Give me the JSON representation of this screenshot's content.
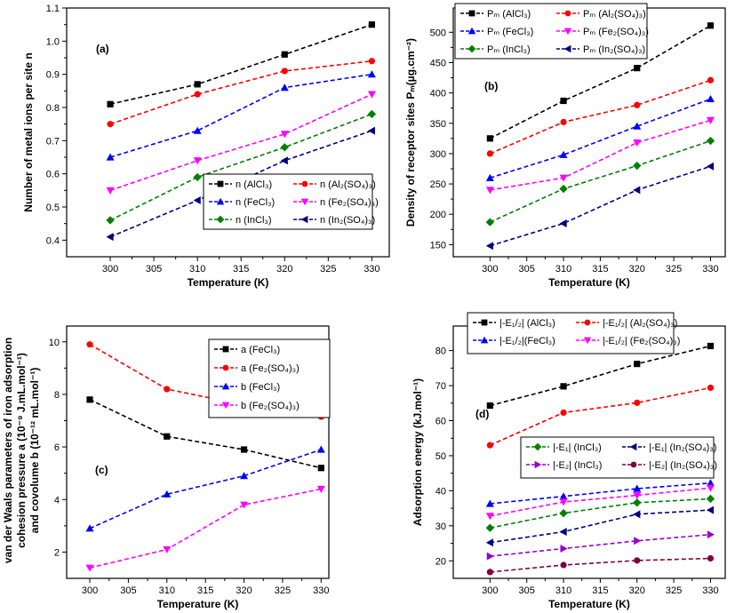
{
  "chart_data": [
    {
      "type": "line",
      "panel_label": "(a)",
      "xlabel": "Temperature (K)",
      "ylabel": "Number of metal ions per site n",
      "xlim": [
        295,
        332
      ],
      "ylim": [
        0.35,
        1.1
      ],
      "xticks": [
        300,
        305,
        310,
        315,
        320,
        325,
        330
      ],
      "yticks": [
        0.4,
        0.5,
        0.6,
        0.7,
        0.8,
        0.9,
        1.0,
        1.1
      ],
      "ytick_labels": [
        "0.4",
        "0.5",
        "0.6",
        "0.7",
        "0.8",
        "0.9",
        "1.0",
        "1.1"
      ],
      "legend": "lower-right, 2 columns",
      "series": [
        {
          "name": "n (AlCl₃)",
          "color": "#000000",
          "marker": "square",
          "x": [
            300,
            310,
            320,
            330
          ],
          "values": [
            0.81,
            0.87,
            0.96,
            1.05
          ]
        },
        {
          "name": "n (Al₂(SO₄)₃)",
          "color": "#ff0000",
          "marker": "circle",
          "x": [
            300,
            310,
            320,
            330
          ],
          "values": [
            0.75,
            0.84,
            0.91,
            0.94
          ]
        },
        {
          "name": "n (FeCl₃)",
          "color": "#0000ff",
          "marker": "triangle-up",
          "x": [
            300,
            310,
            320,
            330
          ],
          "values": [
            0.65,
            0.73,
            0.86,
            0.9
          ]
        },
        {
          "name": "n (Fe₂(SO₄)₃)",
          "color": "#ff00ff",
          "marker": "triangle-down",
          "x": [
            300,
            310,
            320,
            330
          ],
          "values": [
            0.55,
            0.64,
            0.72,
            0.84
          ]
        },
        {
          "name": "n (InCl₃)",
          "color": "#008000",
          "marker": "diamond",
          "x": [
            300,
            310,
            320,
            330
          ],
          "values": [
            0.46,
            0.59,
            0.68,
            0.78
          ]
        },
        {
          "name": "n (In₂(SO₄)₃)",
          "color": "#000080",
          "marker": "triangle-left",
          "x": [
            300,
            310,
            320,
            330
          ],
          "values": [
            0.41,
            0.52,
            0.64,
            0.73
          ]
        }
      ]
    },
    {
      "type": "line",
      "panel_label": "(b)",
      "xlabel": "Temperature (K)",
      "ylabel": "Density of receptor sites Pₘ(µg.cm⁻²)",
      "xlim": [
        295,
        332
      ],
      "ylim": [
        130,
        540
      ],
      "xticks": [
        300,
        305,
        310,
        315,
        320,
        325,
        330
      ],
      "yticks": [
        150,
        200,
        250,
        300,
        350,
        400,
        450,
        500
      ],
      "ytick_labels": [
        "150",
        "200",
        "250",
        "300",
        "350",
        "400",
        "450",
        "500"
      ],
      "legend": "top-left, 2 columns",
      "series": [
        {
          "name": "Pₘ (AlCl₃)",
          "color": "#000000",
          "marker": "square",
          "x": [
            300,
            310,
            320,
            330
          ],
          "values": [
            325,
            387,
            441,
            511
          ]
        },
        {
          "name": "Pₘ (Al₂(SO₄)₃)",
          "color": "#ff0000",
          "marker": "circle",
          "x": [
            300,
            310,
            320,
            330
          ],
          "values": [
            300,
            352,
            380,
            421
          ]
        },
        {
          "name": "Pₘ (FeCl₃)",
          "color": "#0000ff",
          "marker": "triangle-up",
          "x": [
            300,
            310,
            320,
            330
          ],
          "values": [
            260,
            298,
            345,
            390
          ]
        },
        {
          "name": "Pₘ (Fe₂(SO₄)₃)",
          "color": "#ff00ff",
          "marker": "triangle-down",
          "x": [
            300,
            310,
            320,
            330
          ],
          "values": [
            240,
            260,
            318,
            355
          ]
        },
        {
          "name": "Pₘ (InCl₃)",
          "color": "#008000",
          "marker": "diamond",
          "x": [
            300,
            310,
            320,
            330
          ],
          "values": [
            187,
            242,
            280,
            321
          ]
        },
        {
          "name": "Pₘ (In₂(SO₄)₃)",
          "color": "#000080",
          "marker": "triangle-left",
          "x": [
            300,
            310,
            320,
            330
          ],
          "values": [
            148,
            185,
            240,
            279
          ]
        }
      ]
    },
    {
      "type": "line",
      "panel_label": "(c)",
      "xlabel": "Temperature (K)",
      "ylabel": "van der Waals parameters of iron adsorption cohesion pressure a (10⁻⁹ J.mL.mol⁻¹) and covolume b (10⁻¹² mL.mol⁻¹)",
      "ylabel_lines": [
        "van der Waals parameters of iron adsorption",
        "cohesion pressure a (10⁻⁹ J.mL.mol⁻¹)",
        "and covolume b (10⁻¹² mL.mol⁻¹)"
      ],
      "xlim": [
        297,
        331
      ],
      "ylim": [
        1.0,
        10.6
      ],
      "xticks": [
        300,
        305,
        310,
        315,
        320,
        325,
        330
      ],
      "yticks": [
        2,
        4,
        6,
        8,
        10
      ],
      "ytick_labels": [
        "2",
        "4",
        "6",
        "8",
        "10"
      ],
      "legend": "top-right, 1 column",
      "series": [
        {
          "name": "a (FeCl₃)",
          "color": "#000000",
          "marker": "square",
          "x": [
            300,
            310,
            320,
            330
          ],
          "values": [
            7.8,
            6.4,
            5.9,
            5.2
          ]
        },
        {
          "name": "a (Fe₂(SO₄)₃)",
          "color": "#ff0000",
          "marker": "circle",
          "x": [
            300,
            310,
            320,
            330
          ],
          "values": [
            9.9,
            8.2,
            7.6,
            7.15
          ]
        },
        {
          "name": "b (FeCl₃)",
          "color": "#0000ff",
          "marker": "triangle-up",
          "x": [
            300,
            310,
            320,
            330
          ],
          "values": [
            2.9,
            4.2,
            4.9,
            5.9
          ]
        },
        {
          "name": "b (Fe₂(SO₄)₃)",
          "color": "#ff00ff",
          "marker": "triangle-down",
          "x": [
            300,
            310,
            320,
            330
          ],
          "values": [
            1.4,
            2.1,
            3.8,
            4.4
          ]
        }
      ]
    },
    {
      "type": "line",
      "panel_label": "(d)",
      "xlabel": "Temperature (K)",
      "ylabel": "Adsorption energy (kJ.mol⁻¹)",
      "xlim": [
        295,
        332
      ],
      "ylim": [
        15,
        87
      ],
      "xticks": [
        300,
        305,
        310,
        315,
        320,
        325,
        330
      ],
      "yticks": [
        20,
        30,
        40,
        50,
        60,
        70,
        80
      ],
      "ytick_labels": [
        "20",
        "30",
        "40",
        "50",
        "60",
        "70",
        "80"
      ],
      "legend": "top-left and center-right, 2 columns",
      "series": [
        {
          "name": "|-E₁/₂| (AlCl₃)",
          "color": "#000000",
          "marker": "square",
          "x": [
            300,
            310,
            320,
            330
          ],
          "values": [
            64.3,
            69.8,
            76.2,
            81.3
          ]
        },
        {
          "name": "|-E₁/₂| (Al₂(SO₄)₃)",
          "color": "#ff0000",
          "marker": "circle",
          "x": [
            300,
            310,
            320,
            330
          ],
          "values": [
            53.0,
            62.3,
            65.1,
            69.4
          ]
        },
        {
          "name": "|-E₁/₂|(FeCl₃)",
          "color": "#0000ff",
          "marker": "triangle-up",
          "x": [
            300,
            310,
            320,
            330
          ],
          "values": [
            36.3,
            38.4,
            40.6,
            42.2
          ]
        },
        {
          "name": "|-E₁/₂| (Fe₂(SO₄)₃)",
          "color": "#ff00ff",
          "marker": "triangle-down",
          "x": [
            300,
            310,
            320,
            330
          ],
          "values": [
            32.8,
            36.8,
            38.7,
            40.8
          ]
        },
        {
          "name": "|-E₁| (InCl₃)",
          "color": "#008000",
          "marker": "diamond",
          "x": [
            300,
            310,
            320,
            330
          ],
          "values": [
            29.4,
            33.6,
            36.6,
            37.7
          ]
        },
        {
          "name": "|-E₁| (In₂(SO₄)₃)",
          "color": "#000080",
          "marker": "triangle-left",
          "x": [
            300,
            310,
            320,
            330
          ],
          "values": [
            25.2,
            28.3,
            33.3,
            34.5
          ]
        },
        {
          "name": "|-E₂| (InCl₃)",
          "color": "#9900cc",
          "marker": "triangle-right",
          "x": [
            300,
            310,
            320,
            330
          ],
          "values": [
            21.3,
            23.5,
            25.7,
            27.5
          ]
        },
        {
          "name": "|-E₂| (In₂(SO₄)₃)",
          "color": "#800040",
          "marker": "circle",
          "x": [
            300,
            310,
            320,
            330
          ],
          "values": [
            16.8,
            18.8,
            20.1,
            20.7
          ]
        }
      ]
    }
  ]
}
